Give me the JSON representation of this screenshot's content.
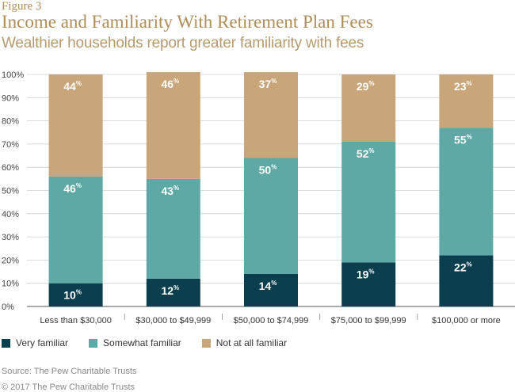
{
  "figure_label": "Figure 3",
  "title": "Income and Familiarity With Retirement Plan Fees",
  "subtitle": "Wealthier households report greater familiarity with fees",
  "source": "Source: The Pew Charitable Trusts",
  "copyright": "© 2017 The Pew Charitable Trusts",
  "chart_data": {
    "type": "bar",
    "stacked": true,
    "categories": [
      "Less than $30,000",
      "$30,000 to $49,999",
      "$50,000 to $74,999",
      "$75,000 to $99,999",
      "$100,000 or more"
    ],
    "series": [
      {
        "name": "Very familiar",
        "values": [
          10,
          12,
          14,
          19,
          22
        ],
        "color": "#0b3f4d"
      },
      {
        "name": "Somewhat familiar",
        "values": [
          46,
          43,
          50,
          52,
          55
        ],
        "color": "#5ea8a6"
      },
      {
        "name": "Not at all familiar",
        "values": [
          44,
          46,
          37,
          29,
          23
        ],
        "color": "#c9a57a"
      }
    ],
    "ylim": [
      0,
      100
    ],
    "yticks": [
      "0%",
      "10%",
      "20%",
      "30%",
      "40%",
      "50%",
      "60%",
      "70%",
      "80%",
      "90%",
      "100%"
    ],
    "value_suffix": "%",
    "legend_position": "bottom-left",
    "grid": true
  }
}
